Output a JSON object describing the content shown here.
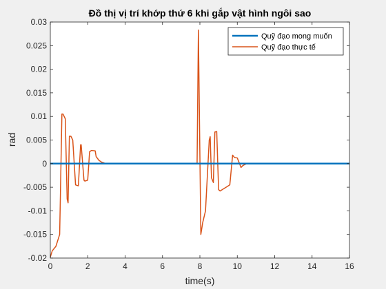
{
  "window": {
    "background": "#f0f0f0"
  },
  "chart_data": {
    "type": "line",
    "title": "Đồ thị vị trí khớp thứ 6 khi gắp vật hình ngôi sao",
    "xlabel": "time(s)",
    "ylabel": "rad",
    "xlim": [
      0,
      16
    ],
    "ylim": [
      -0.02,
      0.03
    ],
    "xticks": [
      0,
      2,
      4,
      6,
      8,
      10,
      12,
      14,
      16
    ],
    "yticks": [
      -0.02,
      -0.015,
      -0.01,
      -0.005,
      0,
      0.005,
      0.01,
      0.015,
      0.02,
      0.025,
      0.03
    ],
    "ytick_labels": [
      "-0.02",
      "-0.015",
      "-0.01",
      "-0.005",
      "0",
      "0.005",
      "0.01",
      "0.015",
      "0.02",
      "0.025",
      "0.03"
    ],
    "grid": false,
    "legend_position": "top-right",
    "series": [
      {
        "name": "Quỹ đạo mong muốn",
        "color": "#0072bd",
        "x": [
          0,
          16
        ],
        "y": [
          0,
          0
        ]
      },
      {
        "name": "Quỹ đạo thực tế",
        "color": "#d95319",
        "x": [
          0,
          0.1,
          0.3,
          0.5,
          0.62,
          0.68,
          0.8,
          0.9,
          0.95,
          1.02,
          1.1,
          1.2,
          1.35,
          1.5,
          1.62,
          1.65,
          1.8,
          1.85,
          2.0,
          2.1,
          2.2,
          2.4,
          2.45,
          2.6,
          2.75,
          2.9,
          3.0,
          7.85,
          7.92,
          8.05,
          8.15,
          8.3,
          8.5,
          8.55,
          8.62,
          8.72,
          8.8,
          8.9,
          9.0,
          9.08,
          9.2,
          9.4,
          9.6,
          9.75,
          9.85,
          10.0,
          10.2,
          10.3,
          10.35,
          10.5,
          10.7,
          16
        ],
        "y": [
          -0.0198,
          -0.0185,
          -0.0175,
          -0.015,
          0.0105,
          0.0105,
          0.0095,
          -0.0075,
          -0.0083,
          0.0058,
          0.0058,
          0.005,
          -0.0045,
          -0.0047,
          0.004,
          0.004,
          -0.0035,
          -0.0037,
          -0.0035,
          0.0025,
          0.0028,
          0.0027,
          0.0015,
          0.0007,
          0.0003,
          0.0001,
          0,
          0,
          0.0283,
          -0.015,
          -0.0125,
          -0.01,
          0.005,
          0.0057,
          -0.003,
          -0.004,
          0.0067,
          0.0068,
          -0.0055,
          -0.0058,
          -0.0055,
          -0.005,
          -0.0045,
          0.0018,
          0.0013,
          0.0012,
          -0.0008,
          -0.0004,
          -0.0003,
          0,
          0,
          0
        ]
      }
    ]
  }
}
